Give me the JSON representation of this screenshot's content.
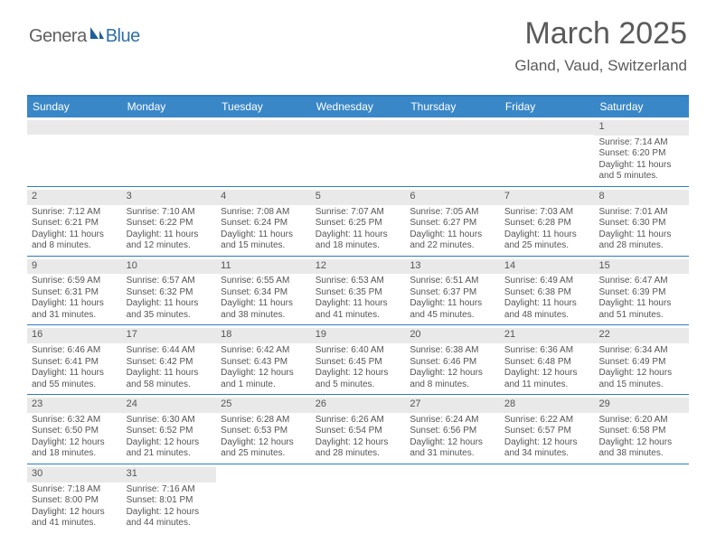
{
  "logo": {
    "text1": "Genera",
    "text2": "Blue"
  },
  "title": "March 2025",
  "location": "Gland, Vaud, Switzerland",
  "dayNames": [
    "Sunday",
    "Monday",
    "Tuesday",
    "Wednesday",
    "Thursday",
    "Friday",
    "Saturday"
  ],
  "colors": {
    "headerBar": "#3a87c8",
    "borderBlue": "#2f7dc0",
    "dayNumBg": "#e9e9e9",
    "text": "#555555",
    "logoGray": "#606060",
    "logoBlue": "#2f6fa8"
  },
  "weeks": [
    [
      null,
      null,
      null,
      null,
      null,
      null,
      {
        "n": "1",
        "sr": "7:14 AM",
        "ss": "6:20 PM",
        "dl": "11 hours and 5 minutes."
      }
    ],
    [
      {
        "n": "2",
        "sr": "7:12 AM",
        "ss": "6:21 PM",
        "dl": "11 hours and 8 minutes."
      },
      {
        "n": "3",
        "sr": "7:10 AM",
        "ss": "6:22 PM",
        "dl": "11 hours and 12 minutes."
      },
      {
        "n": "4",
        "sr": "7:08 AM",
        "ss": "6:24 PM",
        "dl": "11 hours and 15 minutes."
      },
      {
        "n": "5",
        "sr": "7:07 AM",
        "ss": "6:25 PM",
        "dl": "11 hours and 18 minutes."
      },
      {
        "n": "6",
        "sr": "7:05 AM",
        "ss": "6:27 PM",
        "dl": "11 hours and 22 minutes."
      },
      {
        "n": "7",
        "sr": "7:03 AM",
        "ss": "6:28 PM",
        "dl": "11 hours and 25 minutes."
      },
      {
        "n": "8",
        "sr": "7:01 AM",
        "ss": "6:30 PM",
        "dl": "11 hours and 28 minutes."
      }
    ],
    [
      {
        "n": "9",
        "sr": "6:59 AM",
        "ss": "6:31 PM",
        "dl": "11 hours and 31 minutes."
      },
      {
        "n": "10",
        "sr": "6:57 AM",
        "ss": "6:32 PM",
        "dl": "11 hours and 35 minutes."
      },
      {
        "n": "11",
        "sr": "6:55 AM",
        "ss": "6:34 PM",
        "dl": "11 hours and 38 minutes."
      },
      {
        "n": "12",
        "sr": "6:53 AM",
        "ss": "6:35 PM",
        "dl": "11 hours and 41 minutes."
      },
      {
        "n": "13",
        "sr": "6:51 AM",
        "ss": "6:37 PM",
        "dl": "11 hours and 45 minutes."
      },
      {
        "n": "14",
        "sr": "6:49 AM",
        "ss": "6:38 PM",
        "dl": "11 hours and 48 minutes."
      },
      {
        "n": "15",
        "sr": "6:47 AM",
        "ss": "6:39 PM",
        "dl": "11 hours and 51 minutes."
      }
    ],
    [
      {
        "n": "16",
        "sr": "6:46 AM",
        "ss": "6:41 PM",
        "dl": "11 hours and 55 minutes."
      },
      {
        "n": "17",
        "sr": "6:44 AM",
        "ss": "6:42 PM",
        "dl": "11 hours and 58 minutes."
      },
      {
        "n": "18",
        "sr": "6:42 AM",
        "ss": "6:43 PM",
        "dl": "12 hours and 1 minute."
      },
      {
        "n": "19",
        "sr": "6:40 AM",
        "ss": "6:45 PM",
        "dl": "12 hours and 5 minutes."
      },
      {
        "n": "20",
        "sr": "6:38 AM",
        "ss": "6:46 PM",
        "dl": "12 hours and 8 minutes."
      },
      {
        "n": "21",
        "sr": "6:36 AM",
        "ss": "6:48 PM",
        "dl": "12 hours and 11 minutes."
      },
      {
        "n": "22",
        "sr": "6:34 AM",
        "ss": "6:49 PM",
        "dl": "12 hours and 15 minutes."
      }
    ],
    [
      {
        "n": "23",
        "sr": "6:32 AM",
        "ss": "6:50 PM",
        "dl": "12 hours and 18 minutes."
      },
      {
        "n": "24",
        "sr": "6:30 AM",
        "ss": "6:52 PM",
        "dl": "12 hours and 21 minutes."
      },
      {
        "n": "25",
        "sr": "6:28 AM",
        "ss": "6:53 PM",
        "dl": "12 hours and 25 minutes."
      },
      {
        "n": "26",
        "sr": "6:26 AM",
        "ss": "6:54 PM",
        "dl": "12 hours and 28 minutes."
      },
      {
        "n": "27",
        "sr": "6:24 AM",
        "ss": "6:56 PM",
        "dl": "12 hours and 31 minutes."
      },
      {
        "n": "28",
        "sr": "6:22 AM",
        "ss": "6:57 PM",
        "dl": "12 hours and 34 minutes."
      },
      {
        "n": "29",
        "sr": "6:20 AM",
        "ss": "6:58 PM",
        "dl": "12 hours and 38 minutes."
      }
    ],
    [
      {
        "n": "30",
        "sr": "7:18 AM",
        "ss": "8:00 PM",
        "dl": "12 hours and 41 minutes."
      },
      {
        "n": "31",
        "sr": "7:16 AM",
        "ss": "8:01 PM",
        "dl": "12 hours and 44 minutes."
      },
      null,
      null,
      null,
      null,
      null
    ]
  ],
  "labels": {
    "sunrise": "Sunrise: ",
    "sunset": "Sunset: ",
    "daylight": "Daylight: "
  }
}
